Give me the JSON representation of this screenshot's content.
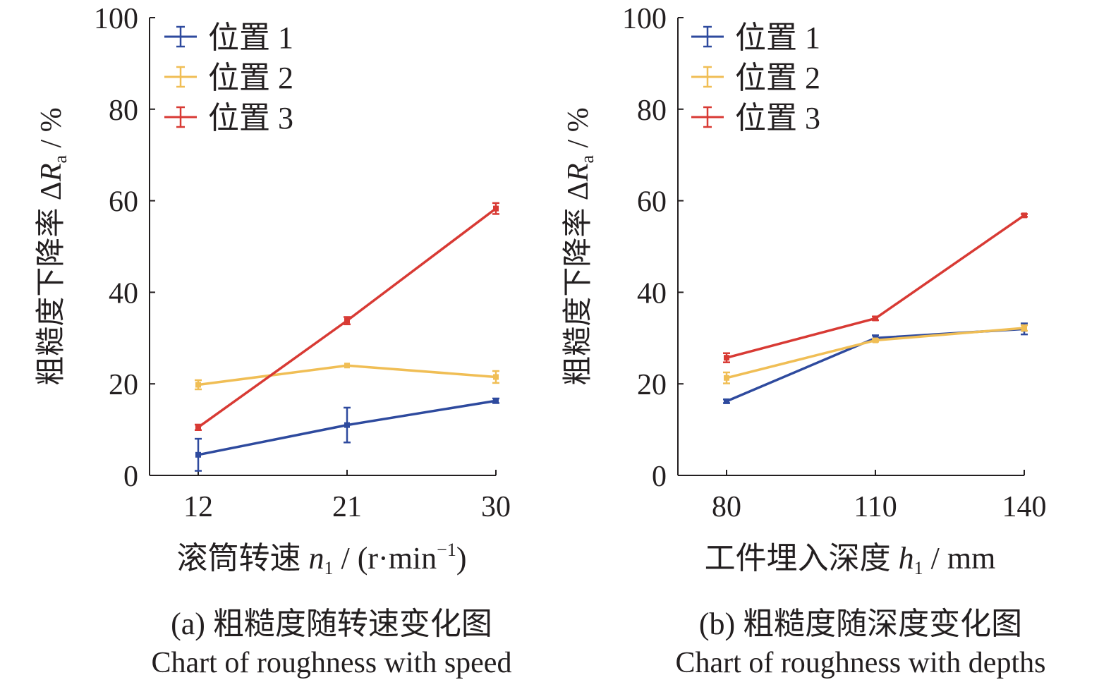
{
  "chart_data": [
    {
      "type": "line",
      "panel_label": "(a) 粗糙度随转速变化图",
      "caption_en": "Chart of roughness with speed",
      "xlabel": {
        "text": "滚筒转速 ",
        "var": "n",
        "sub": "1",
        "unit_pre": " / (r·min",
        "unit_sup": "−1",
        "unit_post": ")"
      },
      "ylabel": {
        "text": "粗糙度下降率 Δ",
        "var": "R",
        "sub": "a",
        "unit": " / %"
      },
      "categories": [
        "12",
        "21",
        "30"
      ],
      "ylim": [
        0,
        100
      ],
      "yticks": [
        "0",
        "20",
        "40",
        "60",
        "80",
        "100"
      ],
      "grid": false,
      "legend_position": "top-left",
      "series": [
        {
          "name": "位置 1",
          "color": "#2e4a9e",
          "values": [
            4.5,
            11,
            16.3
          ],
          "errors": [
            3.5,
            3.8,
            0.5
          ]
        },
        {
          "name": "位置 2",
          "color": "#f0be55",
          "values": [
            19.8,
            24,
            21.5
          ],
          "errors": [
            1,
            0,
            1.3
          ]
        },
        {
          "name": "位置 3",
          "color": "#d83a34",
          "values": [
            10.5,
            33.8,
            58.3
          ],
          "errors": [
            0.6,
            0.8,
            1.2
          ]
        }
      ]
    },
    {
      "type": "line",
      "panel_label": "(b) 粗糙度随深度变化图",
      "caption_en": "Chart of roughness with depths",
      "xlabel": {
        "text": "工件埋入深度 ",
        "var": "h",
        "sub": "1",
        "unit_pre": " / mm",
        "unit_sup": "",
        "unit_post": ""
      },
      "ylabel": {
        "text": "粗糙度下降率 Δ",
        "var": "R",
        "sub": "a",
        "unit": " / %"
      },
      "categories": [
        "80",
        "110",
        "140"
      ],
      "ylim": [
        0,
        100
      ],
      "yticks": [
        "0",
        "20",
        "40",
        "60",
        "80",
        "100"
      ],
      "grid": false,
      "legend_position": "top-left",
      "series": [
        {
          "name": "位置 1",
          "color": "#2e4a9e",
          "values": [
            16.2,
            30,
            32
          ],
          "errors": [
            0.4,
            0.6,
            1.2
          ]
        },
        {
          "name": "位置 2",
          "color": "#f0be55",
          "values": [
            21.3,
            29.5,
            32.2
          ],
          "errors": [
            1.2,
            0.3,
            0.6
          ]
        },
        {
          "name": "位置 3",
          "color": "#d83a34",
          "values": [
            25.7,
            34.3,
            56.8
          ],
          "errors": [
            1,
            0.4,
            0.3
          ]
        }
      ]
    }
  ]
}
